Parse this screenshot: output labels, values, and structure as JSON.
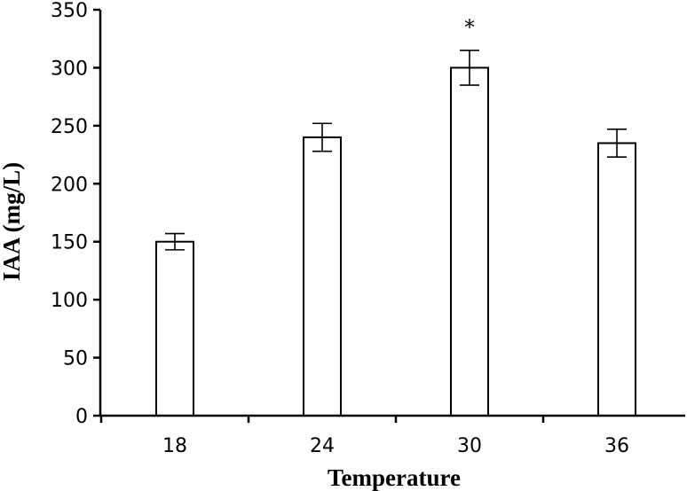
{
  "chart_data": {
    "type": "bar",
    "categories": [
      "18",
      "24",
      "30",
      "36"
    ],
    "values": [
      150,
      240,
      300,
      235
    ],
    "errors": [
      7,
      12,
      15,
      12
    ],
    "annotations": [
      {
        "category": "30",
        "text": "*"
      }
    ],
    "xlabel": "Temperature",
    "ylabel": "IAA (mg/L)",
    "ylim": [
      0,
      350
    ],
    "yticks": [
      0,
      50,
      100,
      150,
      200,
      250,
      300,
      350
    ],
    "grid": false,
    "bar_fill": "#ffffff",
    "bar_stroke": "#000000"
  }
}
